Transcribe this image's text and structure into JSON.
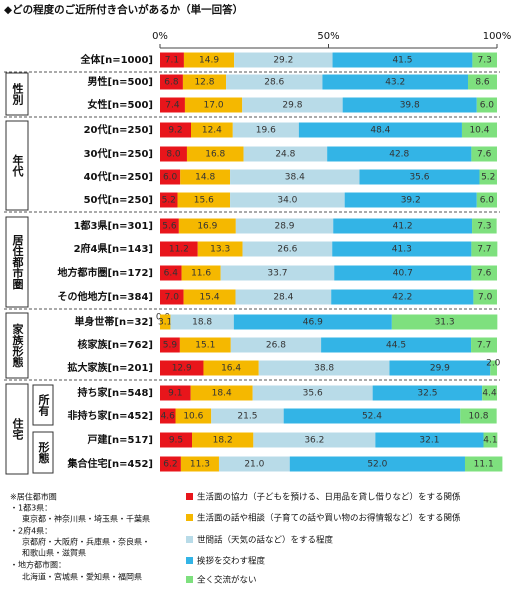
{
  "chart_data": {
    "type": "bar",
    "orientation": "horizontal",
    "stacked": true,
    "title": "◆どの程度のご近所付き合いがあるか（単一回答）",
    "categories": [
      "全体[n=1000]",
      "男性[n=500]",
      "女性[n=500]",
      "20代[n=250]",
      "30代[n=250]",
      "40代[n=250]",
      "50代[n=250]",
      "1都3県[n=301]",
      "2府4県[n=143]",
      "地方都市圏[n=172]",
      "その他地方[n=384]",
      "単身世帯[n=32]",
      "核家族[n=762]",
      "拡大家族[n=201]",
      "持ち家[n=548]",
      "非持ち家[n=452]",
      "戸建[n=517]",
      "集合住宅[n=452]"
    ],
    "groups": [
      "性別",
      "年代",
      "居住都市圏",
      "家族形態",
      "住宅"
    ],
    "subgroups": [
      "所有",
      "形態"
    ],
    "xlim": [
      0,
      100
    ],
    "xticks": [
      {
        "value": 0,
        "label": "0%"
      },
      {
        "value": 50,
        "label": "50%"
      },
      {
        "value": 100,
        "label": "100%"
      }
    ],
    "series": [
      {
        "name": "生活面の協力（子どもを預ける、日用品を貸し借りなど）をする関係",
        "color": "#e8151b",
        "values": [
          7.1,
          6.8,
          7.4,
          9.2,
          8.0,
          6.0,
          5.2,
          5.6,
          11.2,
          6.4,
          7.0,
          0.0,
          5.9,
          12.9,
          9.1,
          4.6,
          9.5,
          6.2
        ],
        "value_labels": [
          "7.1",
          "6.8",
          "7.4",
          "9.2",
          "8.0",
          "6.0",
          "5.2",
          "5.6",
          "11.2",
          "6.4",
          "7.0",
          "0.0",
          "5.9",
          "12.9",
          "9.1",
          "4.6",
          "9.5",
          "6.2"
        ]
      },
      {
        "name": "生活面の話や相談（子育ての話や買い物のお得情報など）をする関係",
        "color": "#f5b800",
        "values": [
          14.9,
          12.8,
          17.0,
          12.4,
          16.8,
          14.8,
          15.6,
          16.9,
          13.3,
          11.6,
          15.4,
          3.1,
          15.1,
          16.4,
          18.4,
          10.6,
          18.2,
          11.3
        ],
        "value_labels": [
          "14.9",
          "12.8",
          "17.0",
          "12.4",
          "16.8",
          "14.8",
          "15.6",
          "16.9",
          "13.3",
          "11.6",
          "15.4",
          "3.1",
          "15.1",
          "16.4",
          "18.4",
          "10.6",
          "18.2",
          "11.3"
        ]
      },
      {
        "name": "世間話（天気の話など）をする程度",
        "color": "#b8dbe8",
        "values": [
          29.2,
          28.6,
          29.8,
          19.6,
          24.8,
          38.4,
          34.0,
          28.9,
          26.6,
          33.7,
          28.4,
          18.8,
          26.8,
          38.8,
          35.6,
          21.5,
          36.2,
          21.0
        ],
        "value_labels": [
          "29.2",
          "28.6",
          "29.8",
          "19.6",
          "24.8",
          "38.4",
          "34.0",
          "28.9",
          "26.6",
          "33.7",
          "28.4",
          "18.8",
          "26.8",
          "38.8",
          "35.6",
          "21.5",
          "36.2",
          "21.0"
        ]
      },
      {
        "name": "挨拶を交わす程度",
        "color": "#33b4e6",
        "values": [
          41.5,
          43.2,
          39.8,
          48.4,
          42.8,
          35.6,
          39.2,
          41.2,
          41.3,
          40.7,
          42.2,
          46.9,
          44.5,
          29.9,
          32.5,
          52.4,
          32.1,
          52.0
        ],
        "value_labels": [
          "41.5",
          "43.2",
          "39.8",
          "48.4",
          "42.8",
          "35.6",
          "39.2",
          "41.2",
          "41.3",
          "40.7",
          "42.2",
          "46.9",
          "44.5",
          "29.9",
          "32.5",
          "52.4",
          "32.1",
          "52.0"
        ]
      },
      {
        "name": "全く交流がない",
        "color": "#7ee07e",
        "values": [
          7.3,
          8.6,
          6.0,
          10.4,
          7.6,
          5.2,
          6.0,
          7.3,
          7.7,
          7.6,
          7.0,
          31.3,
          7.7,
          2.0,
          4.4,
          10.8,
          4.1,
          11.1
        ],
        "value_labels": [
          "7.3",
          "8.6",
          "6.0",
          "10.4",
          "7.6",
          "5.2",
          "6.0",
          "7.3",
          "7.7",
          "7.6",
          "7.0",
          "31.3",
          "7.7",
          "2.0",
          "4.4",
          "10.8",
          "4.1",
          "11.1"
        ]
      }
    ],
    "notes": [
      "※居住都市圏",
      "・1都3県：",
      "東京都・神奈川県・埼玉県・千葉県",
      "・2府4県：",
      "京都府・大阪府・兵庫県・奈良県・",
      "和歌山県・滋賀県",
      "・地方都市圏：",
      "北海道・宮城県・愛知県・福岡県"
    ]
  }
}
